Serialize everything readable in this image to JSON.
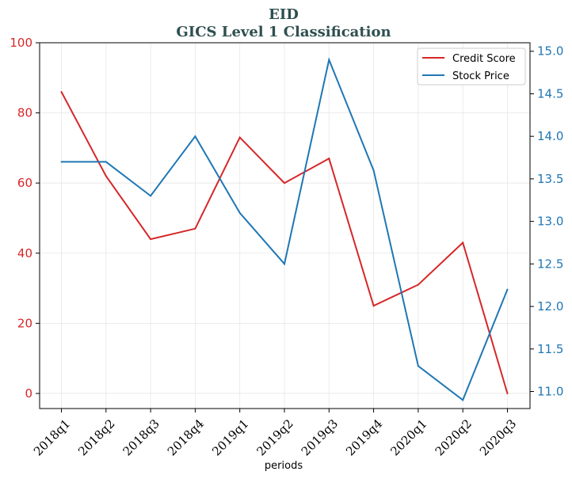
{
  "chart_data": {
    "type": "line",
    "title": "EID",
    "subtitle": "GICS Level 1 Classification",
    "xlabel": "periods",
    "categories": [
      "2018q1",
      "2018q2",
      "2018q3",
      "2018q4",
      "2019q1",
      "2019q2",
      "2019q3",
      "2019q4",
      "2020q1",
      "2020q2",
      "2020q3"
    ],
    "left_axis": {
      "ylim": [
        -4.3,
        100
      ],
      "ticks": [
        0,
        20,
        40,
        60,
        80,
        100
      ],
      "color": "#d62728"
    },
    "right_axis": {
      "ylim": [
        10.8,
        15.1
      ],
      "ticks": [
        11.0,
        11.5,
        12.0,
        12.5,
        13.0,
        13.5,
        14.0,
        14.5,
        15.0
      ],
      "color": "#1f77b4"
    },
    "series": [
      {
        "name": "Credit Score",
        "axis": "left",
        "color": "#d62728",
        "values": [
          86,
          62,
          44,
          47,
          73,
          60,
          67,
          25,
          31,
          43,
          0
        ]
      },
      {
        "name": "Stock Price",
        "axis": "right",
        "color": "#1f77b4",
        "values": [
          13.7,
          13.7,
          13.3,
          14.0,
          13.1,
          12.5,
          14.9,
          13.6,
          11.3,
          10.9,
          12.2
        ]
      }
    ],
    "grid": true,
    "legend_position": "top-right"
  }
}
